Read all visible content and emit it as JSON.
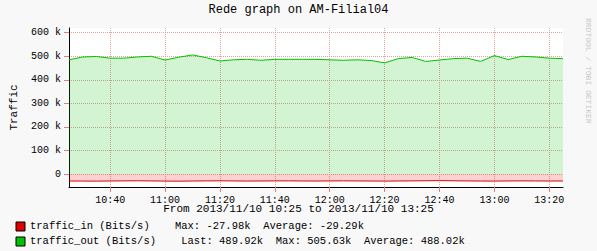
{
  "chart_data": {
    "type": "area",
    "title": "Rede graph on AM-Filial04",
    "y_label": "Traffic",
    "footer": "From 2013/11/10 10:25 to 2013/11/10 13:25",
    "watermark": "RRDTOOL / TOBI OETIKER",
    "categories": [
      null,
      null,
      null,
      "10:40",
      null,
      null,
      null,
      "11:00",
      null,
      null,
      null,
      "11:20",
      null,
      null,
      null,
      "11:40",
      null,
      null,
      null,
      "12:00",
      null,
      null,
      null,
      "12:20",
      null,
      null,
      null,
      "12:40",
      null,
      null,
      null,
      "13:00",
      null,
      null,
      null,
      "13:20",
      null
    ],
    "series": [
      {
        "name": "traffic_in (Bits/s)",
        "color": "#e00000",
        "stats": [
          "Max: -27.98k",
          "Average: -29.29k"
        ],
        "values": [
          -29500,
          -29800,
          -30100,
          -29400,
          -29000,
          -28600,
          -29200,
          -29900,
          -30300,
          -29600,
          -29100,
          -28700,
          -29300,
          -29800,
          -29500,
          -29100,
          -28900,
          -29400,
          -29700,
          -29200,
          -28800,
          -29300,
          -29600,
          -30000,
          -29400,
          -29100,
          -28500,
          -27980,
          -28600,
          -29200,
          -29700,
          -29900,
          -29400,
          -29000,
          -29300,
          -29600,
          -29500
        ]
      },
      {
        "name": "traffic_out (Bits/s)",
        "color": "#00c000",
        "stats": [
          "Last: 489.92k",
          "Max: 505.63k",
          "Average: 488.02k"
        ],
        "values": [
          485000,
          497000,
          499000,
          492000,
          492000,
          497000,
          500000,
          484000,
          496000,
          505630,
          494000,
          480000,
          485000,
          487000,
          483000,
          487000,
          487000,
          487000,
          487000,
          485000,
          483000,
          485000,
          482000,
          472000,
          490000,
          495000,
          478000,
          484000,
          490000,
          492000,
          478000,
          503000,
          486000,
          500000,
          497000,
          492000,
          489920
        ]
      }
    ],
    "ylim": [
      -55000,
      620000
    ],
    "yticks": [
      0,
      {
        "value": 100000,
        "label": "100 k"
      },
      {
        "value": 200000,
        "label": "200 k"
      },
      {
        "value": 300000,
        "label": "300 k"
      },
      {
        "value": 400000,
        "label": "400 k"
      },
      {
        "value": 500000,
        "label": "500 k"
      },
      {
        "value": 600000,
        "label": "600 k"
      }
    ],
    "grid": true,
    "legend": "bottom-left"
  }
}
